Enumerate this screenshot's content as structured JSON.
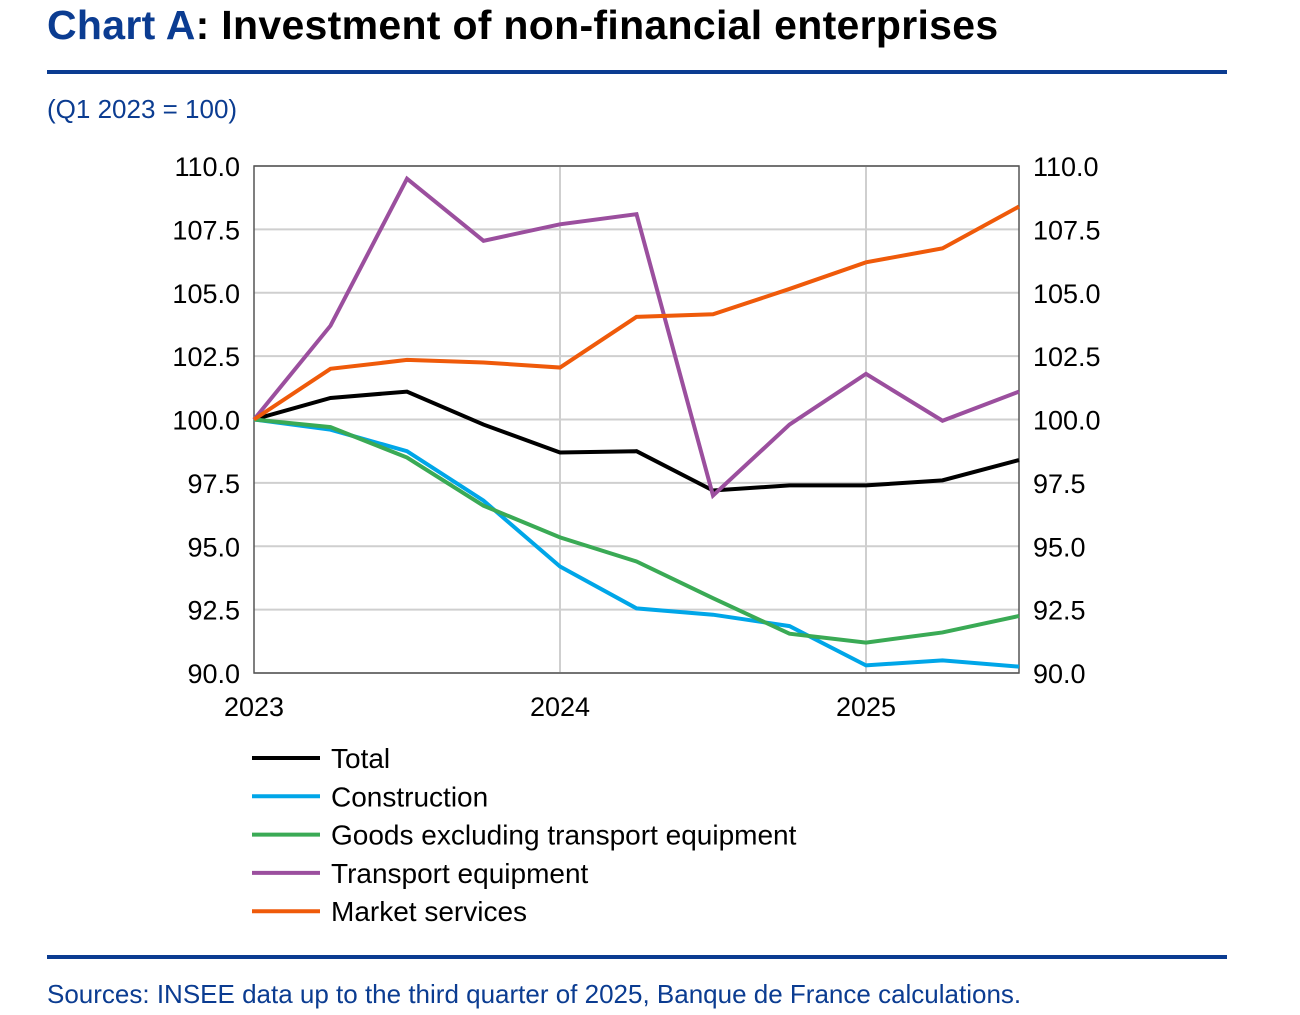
{
  "title_prefix": "Chart A",
  "title_rest": ": Investment of non-financial enterprises",
  "subtitle": "(Q1 2023 = 100)",
  "source": "Sources: INSEE data up to the third quarter of 2025, Banque de France calculations.",
  "chart_data": {
    "type": "line",
    "title": "Chart A: Investment of non-financial enterprises",
    "ylabel": "(Q1 2023 = 100)",
    "x": [
      "2023-Q1",
      "2023-Q2",
      "2023-Q3",
      "2023-Q4",
      "2024-Q1",
      "2024-Q2",
      "2024-Q3",
      "2024-Q4",
      "2025-Q1",
      "2025-Q2",
      "2025-Q3"
    ],
    "xticks": [
      "2023",
      "2024",
      "2025"
    ],
    "yticks": [
      "90.0",
      "92.5",
      "95.0",
      "97.5",
      "100.0",
      "102.5",
      "105.0",
      "107.5",
      "110.0"
    ],
    "ylim": [
      90,
      110
    ],
    "grid": true,
    "legend_position": "bottom",
    "series": [
      {
        "name": "Total",
        "color": "#000000",
        "values": [
          100,
          100.85,
          101.1,
          99.8,
          98.7,
          98.75,
          97.2,
          97.4,
          97.4,
          97.6,
          98.4
        ]
      },
      {
        "name": "Construction",
        "color": "#00a6e8",
        "values": [
          100,
          99.6,
          98.75,
          96.8,
          94.2,
          92.55,
          92.3,
          91.85,
          90.3,
          90.5,
          90.25
        ]
      },
      {
        "name": "Goods excluding transport equipment",
        "color": "#3aaa55",
        "values": [
          100,
          99.7,
          98.5,
          96.6,
          95.35,
          94.4,
          92.95,
          91.55,
          91.2,
          91.6,
          92.25
        ]
      },
      {
        "name": "Transport equipment",
        "color": "#9b4f9e",
        "values": [
          100,
          103.7,
          109.5,
          107.05,
          107.7,
          108.1,
          97.0,
          99.8,
          101.8,
          99.95,
          101.1
        ]
      },
      {
        "name": "Market services",
        "color": "#ef5a0a",
        "values": [
          100,
          102.0,
          102.35,
          102.25,
          102.05,
          104.05,
          104.15,
          105.15,
          106.2,
          106.75,
          108.4
        ]
      }
    ]
  }
}
